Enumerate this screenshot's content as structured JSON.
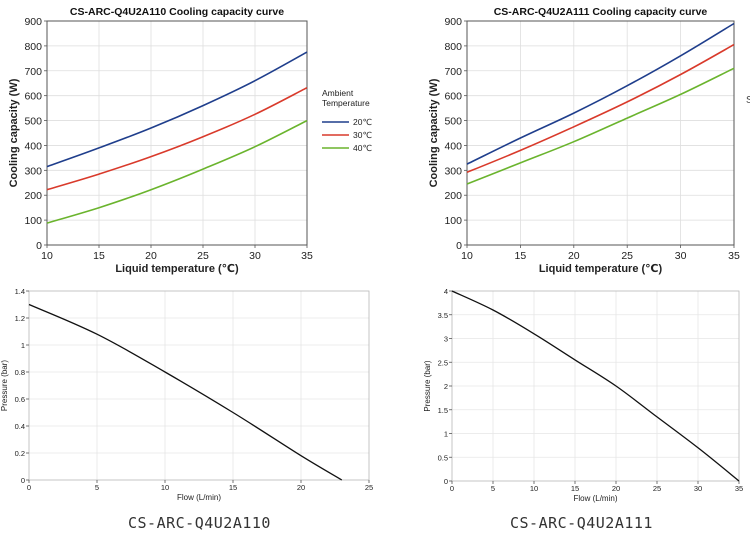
{
  "colors": {
    "blue": "#1f3e8c",
    "red": "#d93a2b",
    "green": "#6ab42d",
    "black": "#111111",
    "grid": "#dddddd"
  },
  "captions": {
    "left": "CS-ARC-Q4U2A110",
    "right": "CS-ARC-Q4U2A111"
  },
  "stray_glyph": "S",
  "chart_data": [
    {
      "type": "line",
      "title": "CS-ARC-Q4U2A110 Cooling capacity curve",
      "xlabel": "Liquid temperature (℃)",
      "ylabel": "Cooling capacity (W)",
      "xlim": [
        10,
        35
      ],
      "ylim": [
        0,
        900
      ],
      "xticks": [
        10,
        15,
        20,
        25,
        30,
        35
      ],
      "yticks": [
        0,
        100,
        200,
        300,
        400,
        500,
        600,
        700,
        800,
        900
      ],
      "grid": true,
      "legend": {
        "title": "Ambient Temperature",
        "position": "right"
      },
      "x": [
        10,
        15,
        20,
        25,
        30,
        35
      ],
      "series": [
        {
          "name": "20℃",
          "color": "#1f3e8c",
          "values": [
            315,
            390,
            470,
            560,
            660,
            775
          ]
        },
        {
          "name": "30℃",
          "color": "#d93a2b",
          "values": [
            222,
            285,
            355,
            435,
            525,
            632
          ]
        },
        {
          "name": "40℃",
          "color": "#6ab42d",
          "values": [
            88,
            150,
            222,
            305,
            395,
            500
          ]
        }
      ]
    },
    {
      "type": "line",
      "title": "CS-ARC-Q4U2A111 Cooling capacity curve",
      "xlabel": "Liquid temperature (℃)",
      "ylabel": "Cooling capacity (W)",
      "xlim": [
        10,
        35
      ],
      "ylim": [
        0,
        900
      ],
      "xticks": [
        10,
        15,
        20,
        25,
        30,
        35
      ],
      "yticks": [
        0,
        100,
        200,
        300,
        400,
        500,
        600,
        700,
        800,
        900
      ],
      "grid": true,
      "x": [
        10,
        15,
        20,
        25,
        30,
        35
      ],
      "series": [
        {
          "color": "#1f3e8c",
          "values": [
            325,
            430,
            530,
            640,
            760,
            890
          ]
        },
        {
          "color": "#d93a2b",
          "values": [
            292,
            380,
            475,
            575,
            685,
            805
          ]
        },
        {
          "color": "#6ab42d",
          "values": [
            245,
            330,
            415,
            510,
            605,
            710
          ]
        }
      ]
    },
    {
      "type": "line",
      "xlabel": "Flow (L/min)",
      "ylabel": "Pressure (bar)",
      "xlim": [
        0,
        25
      ],
      "ylim": [
        0,
        1.4
      ],
      "xticks": [
        0,
        5,
        10,
        15,
        20,
        25
      ],
      "yticks": [
        0,
        0.2,
        0.4,
        0.6,
        0.8,
        1,
        1.2,
        1.4
      ],
      "grid": true,
      "x": [
        0,
        5,
        10,
        15,
        20,
        23
      ],
      "series": [
        {
          "color": "#111111",
          "values": [
            1.3,
            1.08,
            0.8,
            0.5,
            0.18,
            0
          ]
        }
      ]
    },
    {
      "type": "line",
      "xlabel": "Flow (L/min)",
      "ylabel": "Pressure (bar)",
      "xlim": [
        0,
        35
      ],
      "ylim": [
        0,
        4
      ],
      "xticks": [
        0,
        5,
        10,
        15,
        20,
        25,
        30,
        35
      ],
      "yticks": [
        0,
        0.5,
        1,
        1.5,
        2,
        2.5,
        3,
        3.5,
        4
      ],
      "grid": true,
      "x": [
        0,
        5,
        10,
        15,
        20,
        25,
        30,
        35
      ],
      "series": [
        {
          "color": "#111111",
          "values": [
            4,
            3.6,
            3.1,
            2.55,
            2.0,
            1.35,
            0.7,
            0
          ]
        }
      ]
    }
  ]
}
